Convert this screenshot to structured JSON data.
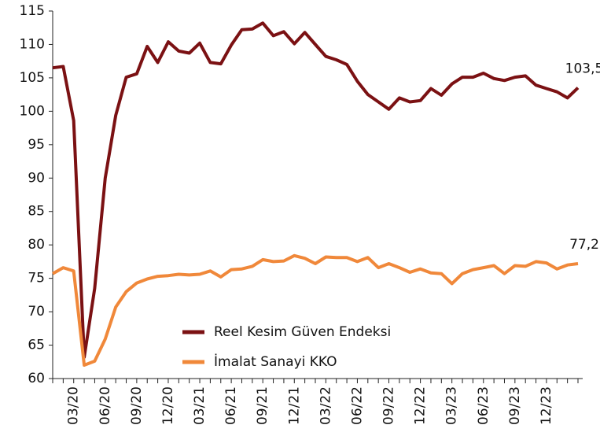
{
  "chart_data": {
    "type": "line",
    "categories": [
      null,
      null,
      "03/20",
      null,
      null,
      "06/20",
      null,
      null,
      "09/20",
      null,
      null,
      "12/20",
      null,
      null,
      "03/21",
      null,
      null,
      "06/21",
      null,
      null,
      "09/21",
      null,
      null,
      "12/21",
      null,
      null,
      "03/22",
      null,
      null,
      "06/22",
      null,
      null,
      "09/22",
      null,
      null,
      "12/22",
      null,
      null,
      "03/23",
      null,
      null,
      "06/23",
      null,
      null,
      "09/23",
      null,
      null,
      "12/23",
      null,
      null,
      null
    ],
    "series": [
      {
        "name": "Reel Kesim Güven Endeksi",
        "color": "#7b1113",
        "values": [
          106.5,
          106.7,
          98.6,
          63.2,
          73.5,
          90.0,
          99.4,
          105.1,
          105.6,
          109.7,
          107.3,
          110.4,
          109.0,
          108.7,
          110.2,
          107.3,
          107.1,
          109.9,
          112.2,
          112.3,
          113.2,
          111.3,
          111.9,
          110.1,
          111.8,
          110.0,
          108.2,
          107.7,
          107.0,
          104.5,
          102.5,
          101.4,
          100.3,
          102.0,
          101.4,
          101.6,
          103.4,
          102.4,
          104.1,
          105.1,
          105.1,
          105.7,
          104.9,
          104.6,
          105.1,
          105.3,
          103.9,
          103.4,
          102.9,
          102.0,
          103.5
        ],
        "value_labels": [
          null,
          null,
          null,
          null,
          null,
          null,
          null,
          null,
          null,
          null,
          null,
          null,
          null,
          null,
          null,
          null,
          null,
          null,
          null,
          null,
          null,
          null,
          null,
          null,
          null,
          null,
          null,
          null,
          null,
          null,
          null,
          null,
          null,
          null,
          null,
          null,
          null,
          null,
          null,
          null,
          null,
          null,
          null,
          null,
          null,
          null,
          null,
          null,
          null,
          null,
          "103,5"
        ]
      },
      {
        "name": "İmalat Sanayi KKO",
        "color": "#f0883a",
        "values": [
          75.7,
          76.6,
          76.1,
          62.0,
          62.6,
          65.9,
          70.7,
          73.0,
          74.3,
          74.9,
          75.3,
          75.4,
          75.6,
          75.5,
          75.6,
          76.1,
          75.2,
          76.3,
          76.4,
          76.8,
          77.8,
          77.5,
          77.6,
          78.4,
          78.0,
          77.2,
          78.2,
          78.1,
          78.1,
          77.5,
          78.1,
          76.6,
          77.2,
          76.6,
          75.9,
          76.4,
          75.8,
          75.7,
          74.2,
          75.7,
          76.3,
          76.6,
          76.9,
          75.7,
          76.9,
          76.8,
          77.5,
          77.3,
          76.4,
          77.0,
          77.2
        ],
        "value_labels": [
          null,
          null,
          null,
          null,
          null,
          null,
          null,
          null,
          null,
          null,
          null,
          null,
          null,
          null,
          null,
          null,
          null,
          null,
          null,
          null,
          null,
          null,
          null,
          null,
          null,
          null,
          null,
          null,
          null,
          null,
          null,
          null,
          null,
          null,
          null,
          null,
          null,
          null,
          null,
          null,
          null,
          null,
          null,
          null,
          null,
          null,
          null,
          null,
          null,
          null,
          "77,2"
        ]
      }
    ],
    "ylim": [
      60,
      115
    ],
    "yticks": [
      60,
      65,
      70,
      75,
      80,
      85,
      90,
      95,
      100,
      105,
      110,
      115
    ],
    "grid": false,
    "legend": "lower center"
  }
}
